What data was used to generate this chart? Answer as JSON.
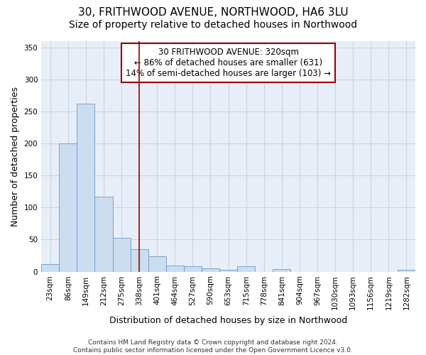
{
  "title": "30, FRITHWOOD AVENUE, NORTHWOOD, HA6 3LU",
  "subtitle": "Size of property relative to detached houses in Northwood",
  "xlabel": "Distribution of detached houses by size in Northwood",
  "ylabel": "Number of detached properties",
  "bar_labels": [
    "23sqm",
    "86sqm",
    "149sqm",
    "212sqm",
    "275sqm",
    "338sqm",
    "401sqm",
    "464sqm",
    "527sqm",
    "590sqm",
    "653sqm",
    "715sqm",
    "778sqm",
    "841sqm",
    "904sqm",
    "967sqm",
    "1030sqm",
    "1093sqm",
    "1156sqm",
    "1219sqm",
    "1282sqm"
  ],
  "bar_values": [
    12,
    200,
    262,
    117,
    53,
    35,
    24,
    9,
    8,
    5,
    3,
    8,
    0,
    4,
    0,
    0,
    0,
    0,
    0,
    0,
    3
  ],
  "bar_color": "#ccddf0",
  "bar_edge_color": "#6699cc",
  "vline_x": 5.0,
  "vline_color": "#990000",
  "annotation_text": "30 FRITHWOOD AVENUE: 320sqm\n← 86% of detached houses are smaller (631)\n14% of semi-detached houses are larger (103) →",
  "annotation_box_color": "#ffffff",
  "annotation_box_edge_color": "#990000",
  "ylim": [
    0,
    360
  ],
  "yticks": [
    0,
    50,
    100,
    150,
    200,
    250,
    300,
    350
  ],
  "bg_color": "#ffffff",
  "plot_bg_color": "#e8eef8",
  "footer": "Contains HM Land Registry data © Crown copyright and database right 2024.\nContains public sector information licensed under the Open Government Licence v3.0.",
  "title_fontsize": 11,
  "subtitle_fontsize": 10,
  "xlabel_fontsize": 9,
  "ylabel_fontsize": 9,
  "tick_fontsize": 7.5,
  "footer_fontsize": 6.5,
  "annotation_fontsize": 8.5,
  "grid_color": "#c8d4e8"
}
